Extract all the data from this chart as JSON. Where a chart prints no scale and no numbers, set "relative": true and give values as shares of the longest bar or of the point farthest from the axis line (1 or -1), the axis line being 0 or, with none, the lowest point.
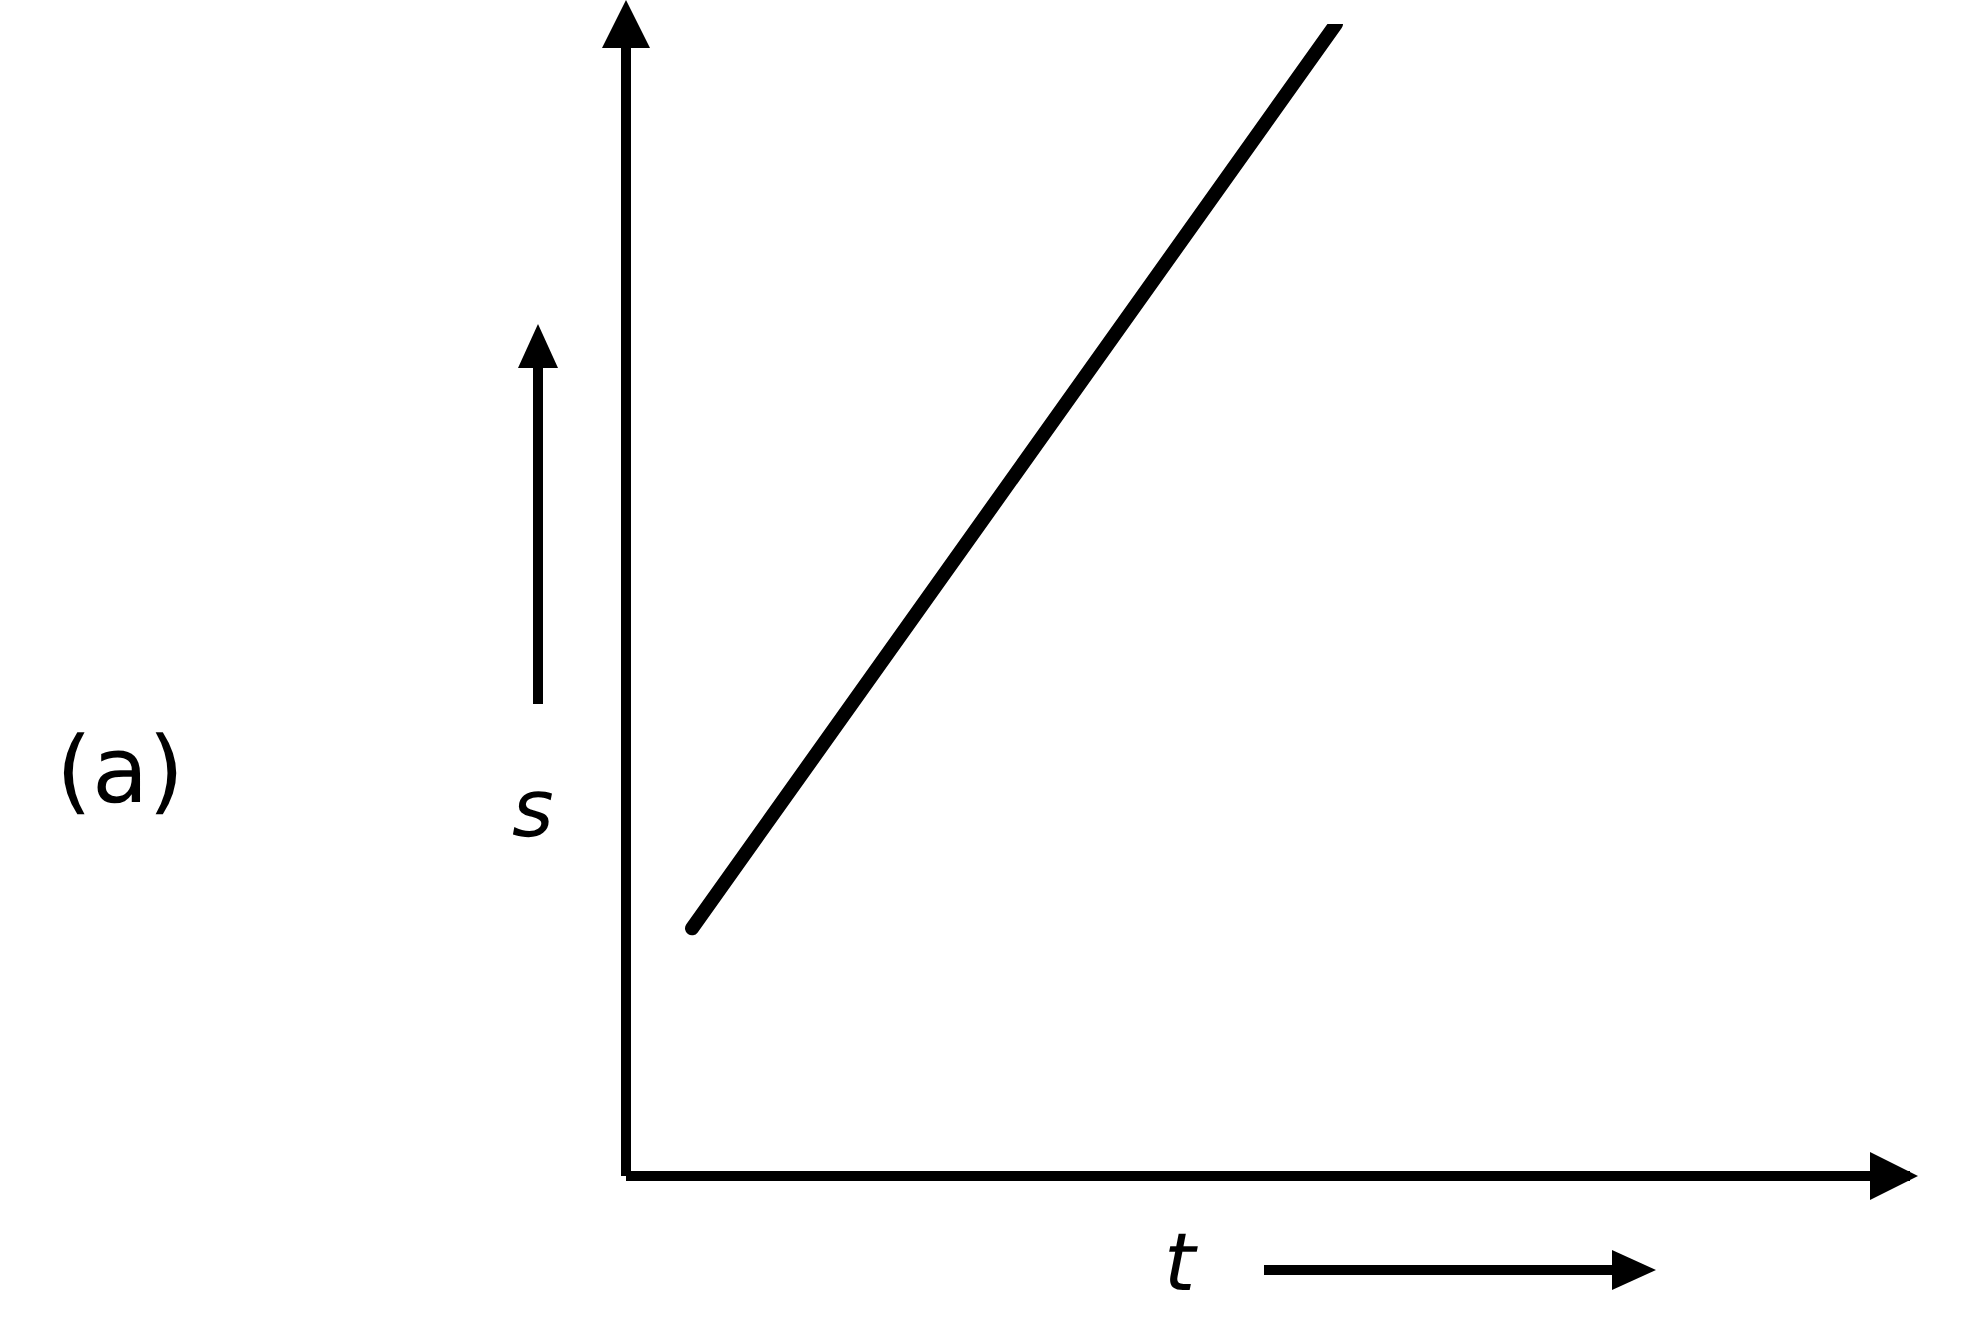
{
  "chart_data": {
    "type": "line",
    "title": "(a)",
    "xlabel": "t",
    "ylabel": "s",
    "categories": [
      null,
      null
    ],
    "series": [
      {
        "color": "#000000",
        "values": [
          0.215,
          1
        ]
      }
    ],
    "relative": true,
    "marker": "none",
    "line_style": "solid"
  }
}
